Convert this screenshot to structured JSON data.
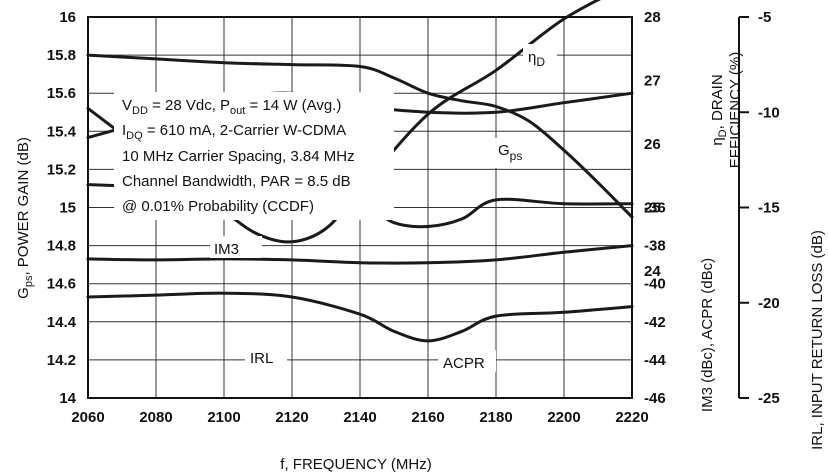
{
  "chart_data": {
    "type": "line",
    "xlabel": "f, FREQUENCY (MHz)",
    "x_ticks": [
      2060,
      2080,
      2100,
      2120,
      2140,
      2160,
      2180,
      2200,
      2220
    ],
    "xlim": [
      2060,
      2220
    ],
    "left_axis": {
      "label_main": "G",
      "label_sub": "ps",
      "label_rest": ", POWER GAIN (dB)",
      "ylim": [
        14,
        16
      ],
      "ticks": [
        "14",
        "14.2",
        "14.4",
        "14.6",
        "14.8",
        "15",
        "15.2",
        "15.4",
        "15.6",
        "15.8",
        "16"
      ]
    },
    "right_axis_efficiency": {
      "label_line1_main": "η",
      "label_line1_sub": "D",
      "label_line1_rest": ", DRAIN",
      "label_line2": "EFFICIENCY (%)",
      "ylim": [
        22,
        28
      ],
      "ticks": [
        "24",
        "25",
        "26",
        "27",
        "28"
      ]
    },
    "right_axis_im3": {
      "label": "IM3 (dBc), ACPR (dBc)",
      "ylim": [
        -46,
        -26
      ],
      "ticks": [
        "-46",
        "-44",
        "-42",
        "-40",
        "-38",
        "-36"
      ]
    },
    "right_axis_irl": {
      "label": "IRL, INPUT RETURN LOSS (dB)",
      "ylim": [
        -25,
        -5
      ],
      "ticks": [
        "-5",
        "-10",
        "-15",
        "-20",
        "-25"
      ]
    },
    "annotation": {
      "line1_a": "V",
      "line1_sub1": "DD",
      "line1_b": " = 28 Vdc, P",
      "line1_sub2": "out",
      "line1_c": " = 14 W (Avg.)",
      "line2_a": "I",
      "line2_sub": "DQ",
      "line2_b": " = 610 mA, 2-Carrier W-CDMA",
      "line3": "10 MHz Carrier Spacing, 3.84 MHz",
      "line4": "Channel Bandwidth, PAR = 8.5 dB",
      "line5": "@ 0.01% Probability (CCDF)"
    },
    "series": [
      {
        "name": "Gps",
        "label_main": "G",
        "label_sub": "ps",
        "axis": "left",
        "x": [
          2060,
          2080,
          2100,
          2120,
          2140,
          2150,
          2160,
          2170,
          2180,
          2190,
          2200,
          2210,
          2220
        ],
        "values": [
          15.8,
          15.78,
          15.76,
          15.75,
          15.74,
          15.68,
          15.6,
          15.56,
          15.53,
          15.45,
          15.3,
          15.13,
          14.95
        ]
      },
      {
        "name": "ηD",
        "label_main": "η",
        "label_sub": "D",
        "axis": "right_efficiency",
        "x": [
          2060,
          2080,
          2100,
          2120,
          2140,
          2160,
          2180,
          2200,
          2220
        ],
        "values": [
          26.1,
          26.4,
          26.7,
          26.8,
          26.6,
          26.5,
          26.5,
          26.65,
          26.8
        ]
      },
      {
        "name": "IM3",
        "axis": "right_im3",
        "x": [
          2060,
          2080,
          2100,
          2120,
          2140,
          2160,
          2180,
          2200,
          2220
        ],
        "values": [
          -38.7,
          -38.75,
          -38.7,
          -38.75,
          -38.9,
          -38.9,
          -38.75,
          -38.35,
          -38.0
        ]
      },
      {
        "name": "ACPR",
        "axis": "right_im3",
        "x": [
          2060,
          2080,
          2100,
          2120,
          2140,
          2150,
          2160,
          2170,
          2180,
          2200,
          2220
        ],
        "values": [
          -40.7,
          -40.6,
          -40.5,
          -40.7,
          -41.6,
          -42.5,
          -43.0,
          -42.5,
          -41.7,
          -41.5,
          -41.2
        ]
      },
      {
        "name": "IRL",
        "axis": "right_irl",
        "x": [
          2060,
          2080,
          2100,
          2110,
          2120,
          2130,
          2140,
          2160,
          2180,
          2200,
          2220
        ],
        "values": [
          -9.8,
          -12.5,
          -15.2,
          -16.4,
          -16.8,
          -16.1,
          -14.1,
          -10.1,
          -7.8,
          -5.1,
          -3.2
        ]
      },
      {
        "name": "",
        "axis": "right_irl",
        "x": [
          2060,
          2080,
          2100,
          2120,
          2140,
          2150,
          2160,
          2170,
          2180,
          2200,
          2220
        ],
        "values": [
          -13.8,
          -13.9,
          -13.9,
          -14.2,
          -14.8,
          -15.8,
          -16.0,
          -15.6,
          -14.6,
          -14.8,
          -14.8
        ]
      }
    ],
    "grid": true
  }
}
